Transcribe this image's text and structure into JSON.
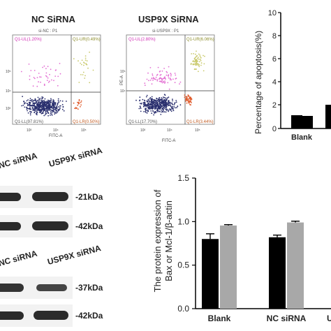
{
  "colors": {
    "dot_main": "#2a2f6e",
    "dot_ur": "#c9c96a",
    "dot_lr": "#e05a2a",
    "dot_ul": "#e36fd3",
    "bar_black": "#000000",
    "bar_gray": "#a8a8a8",
    "band": "#2b2b2b",
    "ul_text": "#d02fb5",
    "ur_text": "#8c8c2a",
    "lr_text": "#c05a20",
    "ll_text": "#555555"
  },
  "flow_left": {
    "title": "NC SiRNA",
    "subtitle": "si-NC : P1",
    "ul": "Q1-UL(1.20%)",
    "ur": "Q1-UR(0.49%)",
    "ll": "Q1-LL(97.81%)",
    "lr": "Q1-LR(0.50%)",
    "xlabel": "FITC-A",
    "ticks_x": [
      "10²",
      "10³",
      "10⁴",
      "10⁵"
    ],
    "ticks_y": [
      "10⁶",
      "10⁵",
      "10⁴",
      "10³",
      "10²"
    ]
  },
  "flow_right": {
    "title": "USP9X SiRNA",
    "subtitle": "si-USP9X : P1",
    "ul": "Q1-UL(2.80%)",
    "ur": "Q1-UR(6.06%)",
    "ll": "Q1-LL(17.70%)",
    "lr": "Q1-LR(3.44%)",
    "xlabel": "FITC-A",
    "ylabel": "PE-A",
    "ticks_x": [
      "10²",
      "10³",
      "10⁴",
      "10⁵"
    ],
    "ticks_y": [
      "10⁶",
      "10⁵",
      "10⁴",
      "10³",
      "10²"
    ]
  },
  "chart_top": {
    "ylabel": "Percentage of apoptosis(%)",
    "yticks": [
      "10",
      "8",
      "6",
      "4",
      "2",
      "0"
    ],
    "category": "Blank"
  },
  "blot_top": {
    "lane_labels": [
      "NC siRNA",
      "USP9X siRNA"
    ],
    "band_labels": [
      "-21kDa",
      "-42kDa"
    ]
  },
  "blot_bottom": {
    "lane_labels": [
      "NC siRNA",
      "USP9X siRNA"
    ],
    "band_labels": [
      "-37kDa",
      "-42kDa"
    ]
  },
  "chart_data": {
    "type": "bar",
    "ylabel": "The protein expression of Bax or Mcl-1/β-actin",
    "ylim": [
      0,
      1.5
    ],
    "yticks": [
      "1.5",
      "1.0",
      "0.5",
      "0.0"
    ],
    "categories": [
      "Blank",
      "NC siRNA",
      "U"
    ],
    "series": [
      {
        "values": [
          0.8,
          0.82,
          null
        ],
        "errors": [
          0.06,
          0.025,
          null
        ]
      },
      {
        "values": [
          0.955,
          0.99,
          null
        ],
        "errors": [
          0.01,
          0.015,
          null
        ]
      }
    ]
  }
}
